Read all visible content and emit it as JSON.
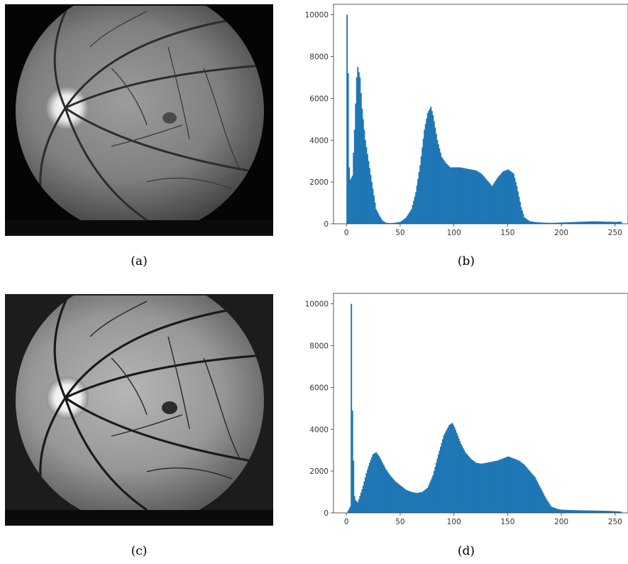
{
  "captions": {
    "a": "(a)",
    "b": "(b)",
    "c": "(c)",
    "d": "(d)"
  },
  "colors": {
    "bar": "#1f77b4",
    "axis": "#333333"
  },
  "chart_data": [
    {
      "type": "bar",
      "panel": "(b)",
      "title": "",
      "xlabel": "",
      "ylabel": "",
      "xlim": [
        -12,
        262
      ],
      "ylim": [
        0,
        10500
      ],
      "xticks": [
        0,
        50,
        100,
        150,
        200,
        250
      ],
      "yticks": [
        0,
        2000,
        4000,
        6000,
        8000,
        10000
      ],
      "grid": false,
      "bins": 256,
      "series": [
        {
          "x": [
            0,
            1,
            2,
            3,
            5,
            7,
            9,
            10,
            12,
            14,
            17,
            20,
            23,
            27,
            30,
            33,
            36,
            40,
            45,
            50,
            55,
            60,
            64,
            68,
            72,
            75,
            77,
            78,
            80,
            84,
            88,
            92,
            96,
            100,
            105,
            110,
            115,
            120,
            125,
            130,
            135,
            140,
            145,
            150,
            155,
            158,
            162,
            165,
            170,
            175,
            180,
            190,
            200,
            210,
            220,
            230,
            240,
            250,
            255
          ],
          "values": [
            10000,
            7200,
            2700,
            2100,
            2300,
            4500,
            7000,
            7500,
            7000,
            5500,
            4000,
            3000,
            2000,
            700,
            400,
            150,
            50,
            30,
            50,
            100,
            300,
            700,
            1500,
            2800,
            4500,
            5300,
            5500,
            5600,
            5200,
            4000,
            3200,
            2900,
            2700,
            2700,
            2700,
            2650,
            2600,
            2550,
            2400,
            2100,
            1800,
            2200,
            2500,
            2600,
            2400,
            1800,
            800,
            300,
            120,
            80,
            60,
            40,
            60,
            80,
            100,
            120,
            100,
            90,
            100
          ]
        }
      ]
    },
    {
      "type": "bar",
      "panel": "(d)",
      "title": "",
      "xlabel": "",
      "ylabel": "",
      "xlim": [
        -12,
        262
      ],
      "ylim": [
        0,
        10500
      ],
      "xticks": [
        0,
        50,
        100,
        150,
        200,
        250
      ],
      "yticks": [
        0,
        2000,
        4000,
        6000,
        8000,
        10000
      ],
      "grid": false,
      "bins": 256,
      "series": [
        {
          "x": [
            0,
            3,
            4,
            5,
            6,
            7,
            8,
            10,
            12,
            15,
            18,
            21,
            24,
            27,
            30,
            33,
            36,
            40,
            45,
            50,
            55,
            60,
            65,
            70,
            75,
            80,
            85,
            90,
            95,
            98,
            100,
            103,
            106,
            110,
            115,
            120,
            125,
            130,
            135,
            140,
            145,
            150,
            155,
            160,
            165,
            170,
            175,
            180,
            185,
            190,
            195,
            200,
            210,
            220,
            230,
            240,
            250,
            255
          ],
          "values": [
            0,
            300,
            10000,
            4900,
            2500,
            800,
            600,
            500,
            800,
            1300,
            1900,
            2400,
            2800,
            2900,
            2700,
            2400,
            2100,
            1800,
            1500,
            1300,
            1100,
            1000,
            950,
            1000,
            1200,
            1800,
            2800,
            3700,
            4200,
            4300,
            4100,
            3700,
            3300,
            2900,
            2600,
            2400,
            2350,
            2400,
            2450,
            2500,
            2600,
            2700,
            2600,
            2500,
            2300,
            2000,
            1700,
            1200,
            700,
            300,
            200,
            150,
            130,
            120,
            110,
            100,
            80,
            60
          ]
        }
      ]
    }
  ]
}
